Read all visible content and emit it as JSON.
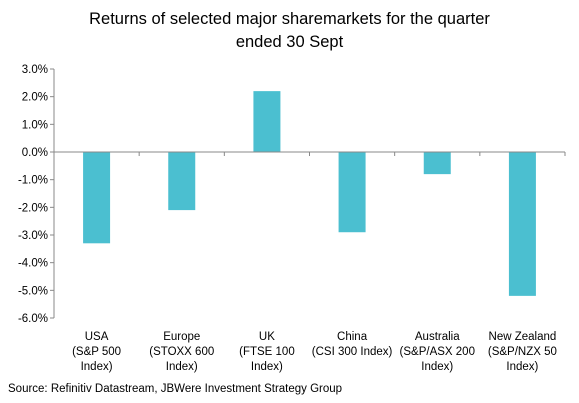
{
  "chart_data": {
    "type": "bar",
    "title_lines": [
      "Returns of selected major sharemarkets for the quarter",
      "ended 30 Sept"
    ],
    "categories": [
      [
        "USA",
        "(S&P 500",
        "Index)"
      ],
      [
        "Europe",
        "(STOXX 600",
        "Index)"
      ],
      [
        "UK",
        "(FTSE 100",
        "Index)"
      ],
      [
        "China",
        "(CSI 300 Index)"
      ],
      [
        "Australia",
        "(S&P/ASX 200",
        "Index)"
      ],
      [
        "New Zealand",
        "(S&P/NZX 50",
        "Index)"
      ]
    ],
    "values": [
      -3.3,
      -2.1,
      2.2,
      -2.9,
      -0.8,
      -5.2
    ],
    "unit": "%",
    "ylim": [
      -6.0,
      3.0
    ],
    "yticks": [
      3.0,
      2.0,
      1.0,
      0.0,
      -1.0,
      -2.0,
      -3.0,
      -4.0,
      -5.0,
      -6.0
    ],
    "ytick_labels": [
      "3.0%",
      "2.0%",
      "1.0%",
      "0.0%",
      "-1.0%",
      "-2.0%",
      "-3.0%",
      "-4.0%",
      "-5.0%",
      "-6.0%"
    ],
    "bar_color": "#4BBFD0",
    "grid": false,
    "legend": "none"
  },
  "source": "Source: Refinitiv Datastream, JBWere Investment Strategy Group"
}
